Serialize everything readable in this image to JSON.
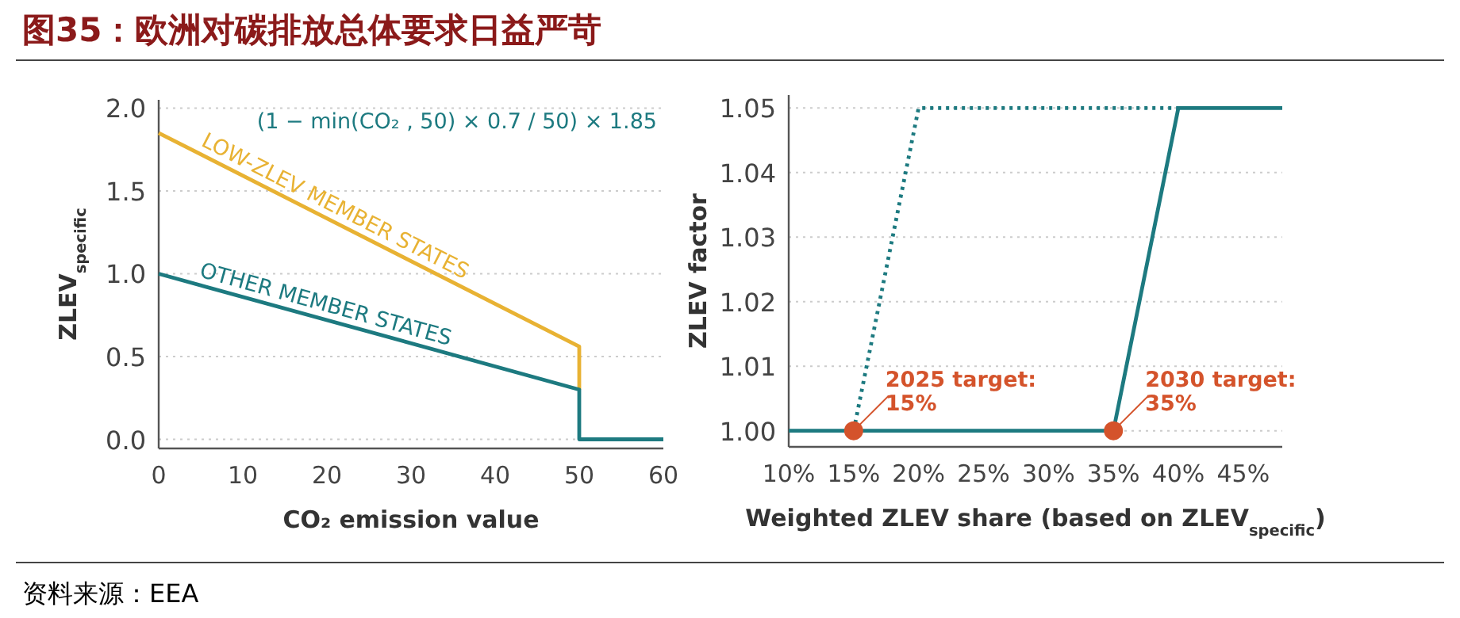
{
  "chart_data": [
    {
      "type": "line",
      "title": "图35：欧洲对碳排放总体要求日益严苛",
      "xlabel": "CO₂ emission value",
      "ylabel": "ZLEV$_{specific}$",
      "xlim": [
        0,
        60
      ],
      "ylim": [
        -0.055,
        2.05
      ],
      "xticks": [
        0,
        10,
        20,
        30,
        40,
        50,
        60
      ],
      "yticks": [
        {
          "value": 0,
          "label": "0.0"
        },
        {
          "value": 0.5,
          "label": "0.5"
        },
        {
          "value": 1,
          "label": "1.0"
        },
        {
          "value": 1.5,
          "label": "1.5"
        },
        {
          "value": 2,
          "label": "2.0"
        }
      ],
      "grid": "y",
      "series": [
        {
          "name": "LOW-ZLEV MEMBER STATES",
          "color": "#e8b233",
          "x": [
            0,
            50,
            50
          ],
          "values": [
            1.85,
            0.56,
            0.3
          ]
        },
        {
          "name": "OTHER MEMBER STATES",
          "color": "#1d7a80",
          "x": [
            0,
            50,
            50,
            60
          ],
          "values": [
            1.0,
            0.3,
            0,
            0
          ]
        }
      ],
      "annotations": [
        "(1 − min(CO₂ , 50) × 0.7 / 50) × 1.85"
      ]
    },
    {
      "type": "line",
      "xlabel": "Weighted ZLEV share (based on ZLEV$_{specific}$)",
      "ylabel": "ZLEV factor",
      "xlim": [
        10,
        48
      ],
      "ylim": [
        0.9975,
        1.052
      ],
      "xticks": [
        {
          "value": 10,
          "label": "10%"
        },
        {
          "value": 15,
          "label": "15%"
        },
        {
          "value": 20,
          "label": "20%"
        },
        {
          "value": 25,
          "label": "25%"
        },
        {
          "value": 30,
          "label": "30%"
        },
        {
          "value": 35,
          "label": "35%"
        },
        {
          "value": 40,
          "label": "40%"
        },
        {
          "value": 45,
          "label": "45%"
        }
      ],
      "yticks": [
        {
          "value": 1,
          "label": "1.00"
        },
        1.01,
        1.02,
        1.03,
        1.04,
        1.05
      ],
      "grid": "y",
      "series": [
        {
          "color": "#1d7a80",
          "line_style": "dotted",
          "x": [
            15,
            20,
            40
          ],
          "values": [
            1.0,
            1.05,
            1.05
          ]
        },
        {
          "color": "#1d7a80",
          "line_style": "solid",
          "x": [
            10,
            35,
            40,
            48
          ],
          "values": [
            1.0,
            1.0,
            1.05,
            1.05
          ]
        },
        {
          "type": "scatter",
          "color": "#d4532b",
          "marker": "circle",
          "x": [
            15,
            35
          ],
          "values": [
            1.0,
            1.0
          ]
        }
      ],
      "annotations": [
        {
          "text": "2025 target:\n15%",
          "x": 15,
          "y": 1.0
        },
        {
          "text": "2030 target:\n35%",
          "x": 35,
          "y": 1.0
        },
        "资料来源：EEA"
      ]
    }
  ]
}
